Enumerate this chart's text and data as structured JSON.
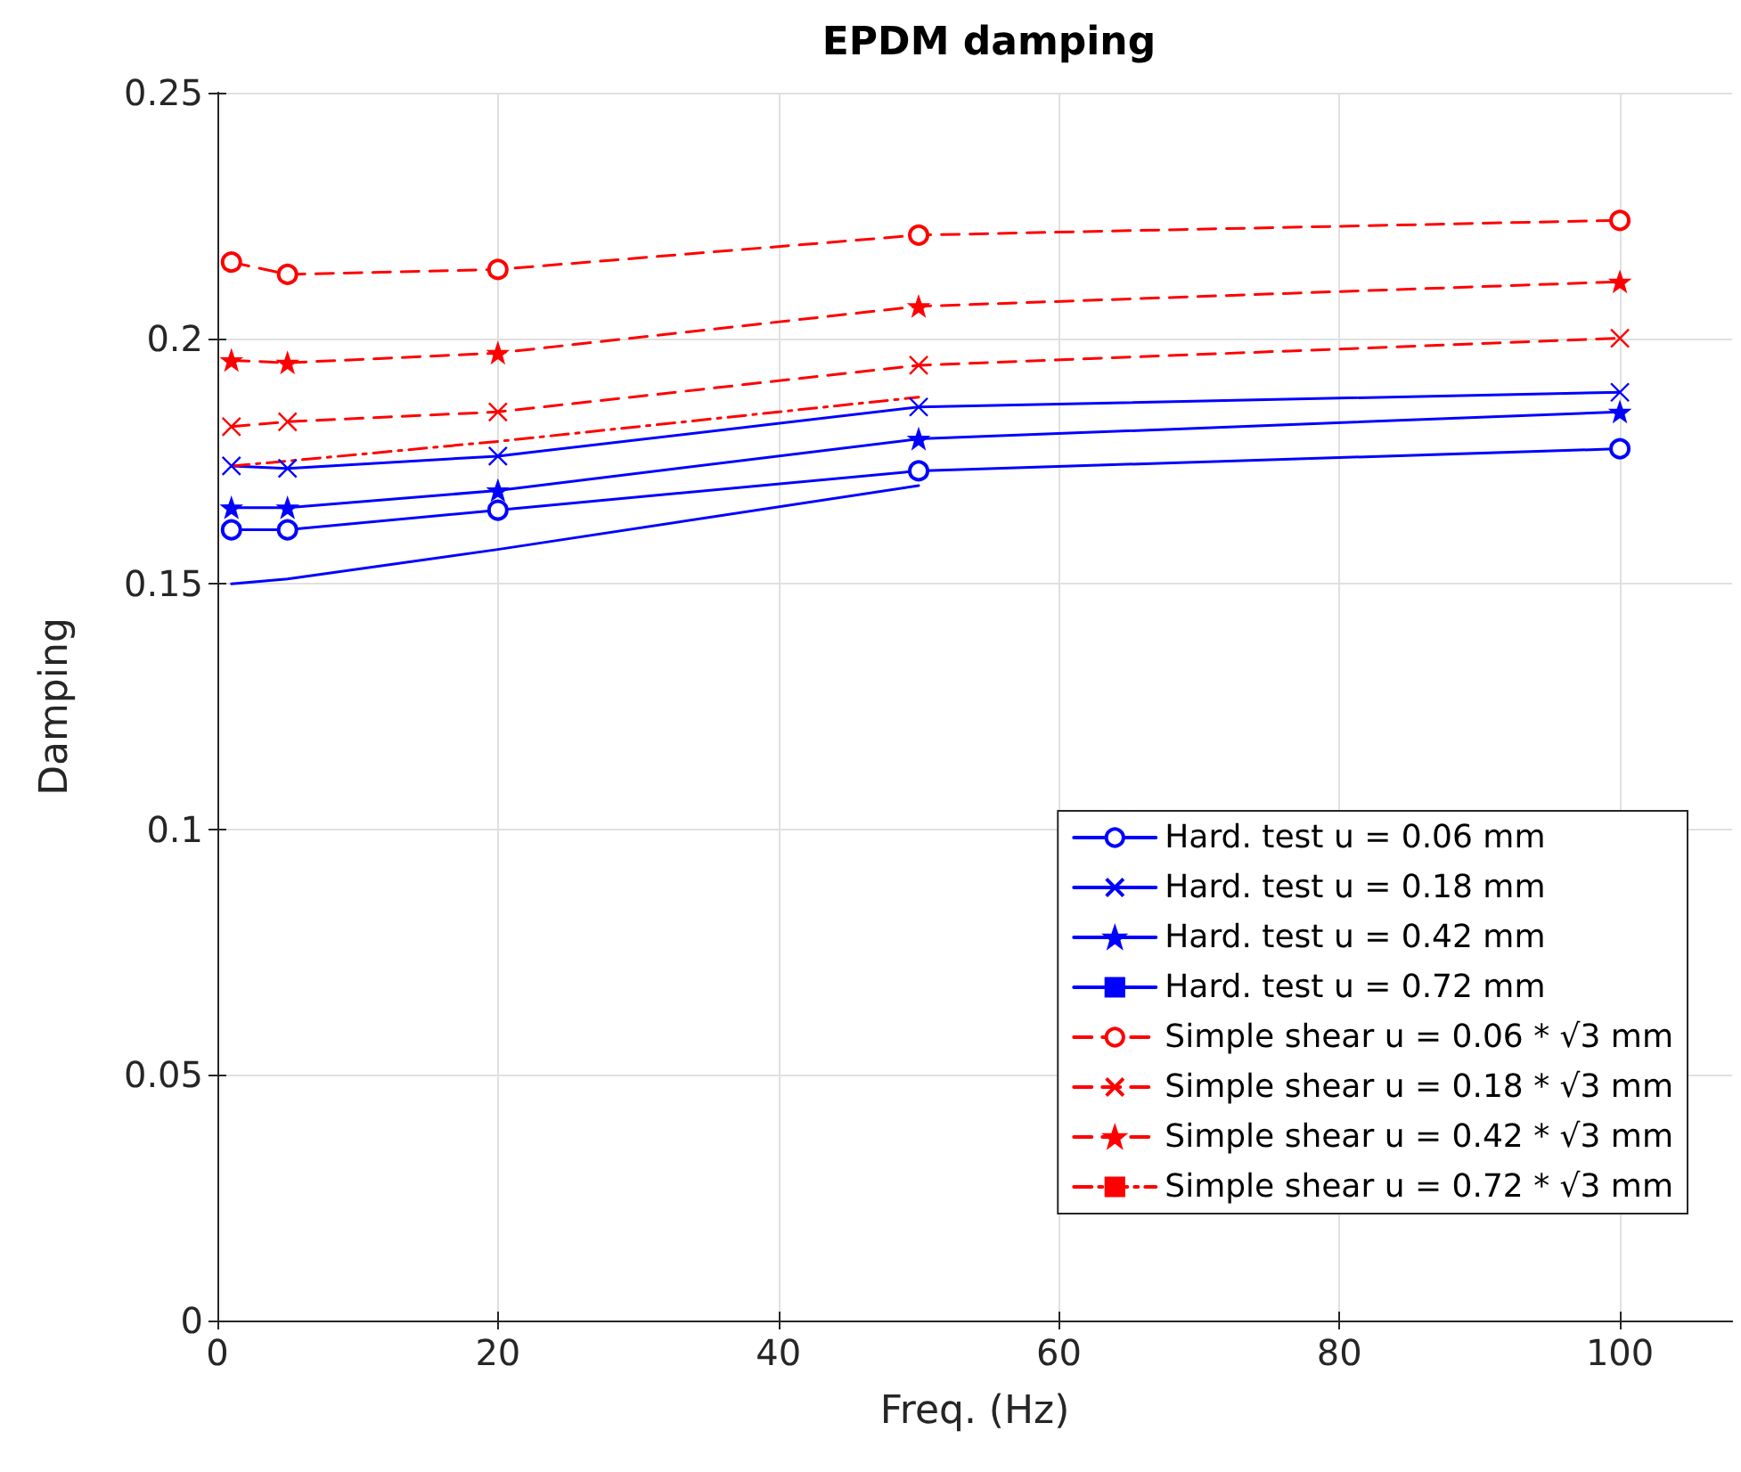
{
  "chart_data": {
    "type": "line",
    "title": "EPDM damping",
    "xlabel": "Freq. (Hz)",
    "ylabel": "Damping",
    "xlim": [
      0,
      108
    ],
    "xticks": [
      0,
      20,
      40,
      60,
      80,
      100
    ],
    "ylim": [
      0,
      0.25
    ],
    "yticks": [
      0,
      0.05,
      0.1,
      0.15,
      0.2,
      0.25
    ],
    "grid": true,
    "legend": "bottom right",
    "series": [
      {
        "name": "Hard. test u = 0.06 mm",
        "color": "#0000ff",
        "marker": "circle",
        "line_style": "solid",
        "x": [
          1,
          5,
          20,
          50,
          100
        ],
        "values": [
          0.161,
          0.161,
          0.165,
          0.173,
          0.1775
        ]
      },
      {
        "name": "Hard. test u = 0.18 mm",
        "color": "#0000ff",
        "marker": "cross",
        "line_style": "solid",
        "x": [
          1,
          5,
          20,
          50,
          100
        ],
        "values": [
          0.174,
          0.1735,
          0.176,
          0.186,
          0.189
        ]
      },
      {
        "name": "Hard. test u = 0.42 mm",
        "color": "#0000ff",
        "marker": "star",
        "line_style": "solid",
        "x": [
          1,
          5,
          20,
          50,
          100
        ],
        "values": [
          0.1655,
          0.1655,
          0.169,
          0.1795,
          0.185
        ]
      },
      {
        "name": "Hard. test u = 0.72 mm",
        "color": "#0000ff",
        "marker": "none",
        "line_style": "solid",
        "x": [
          1,
          5,
          20,
          50
        ],
        "values": [
          0.15,
          0.151,
          0.157,
          0.17
        ]
      },
      {
        "name": "Simple shear u = 0.06 * √3 mm",
        "color": "#ff0000",
        "marker": "circle",
        "line_style": "dashed",
        "x": [
          1,
          5,
          20,
          50,
          100
        ],
        "values": [
          0.2155,
          0.213,
          0.214,
          0.221,
          0.224
        ]
      },
      {
        "name": "Simple shear u = 0.18 * √3 mm",
        "color": "#ff0000",
        "marker": "cross",
        "line_style": "dashed",
        "x": [
          1,
          5,
          20,
          50,
          100
        ],
        "values": [
          0.182,
          0.183,
          0.185,
          0.1945,
          0.2
        ]
      },
      {
        "name": "Simple shear u = 0.42 * √3 mm",
        "color": "#ff0000",
        "marker": "star",
        "line_style": "dashed",
        "x": [
          1,
          5,
          20,
          50,
          100
        ],
        "values": [
          0.1955,
          0.195,
          0.197,
          0.2065,
          0.2115
        ]
      },
      {
        "name": "Simple shear u = 0.72 * √3 mm",
        "color": "#ff0000",
        "marker": "none",
        "line_style": "dashdot",
        "x": [
          1,
          5,
          20,
          50
        ],
        "values": [
          0.174,
          0.175,
          0.179,
          0.188
        ]
      }
    ]
  }
}
